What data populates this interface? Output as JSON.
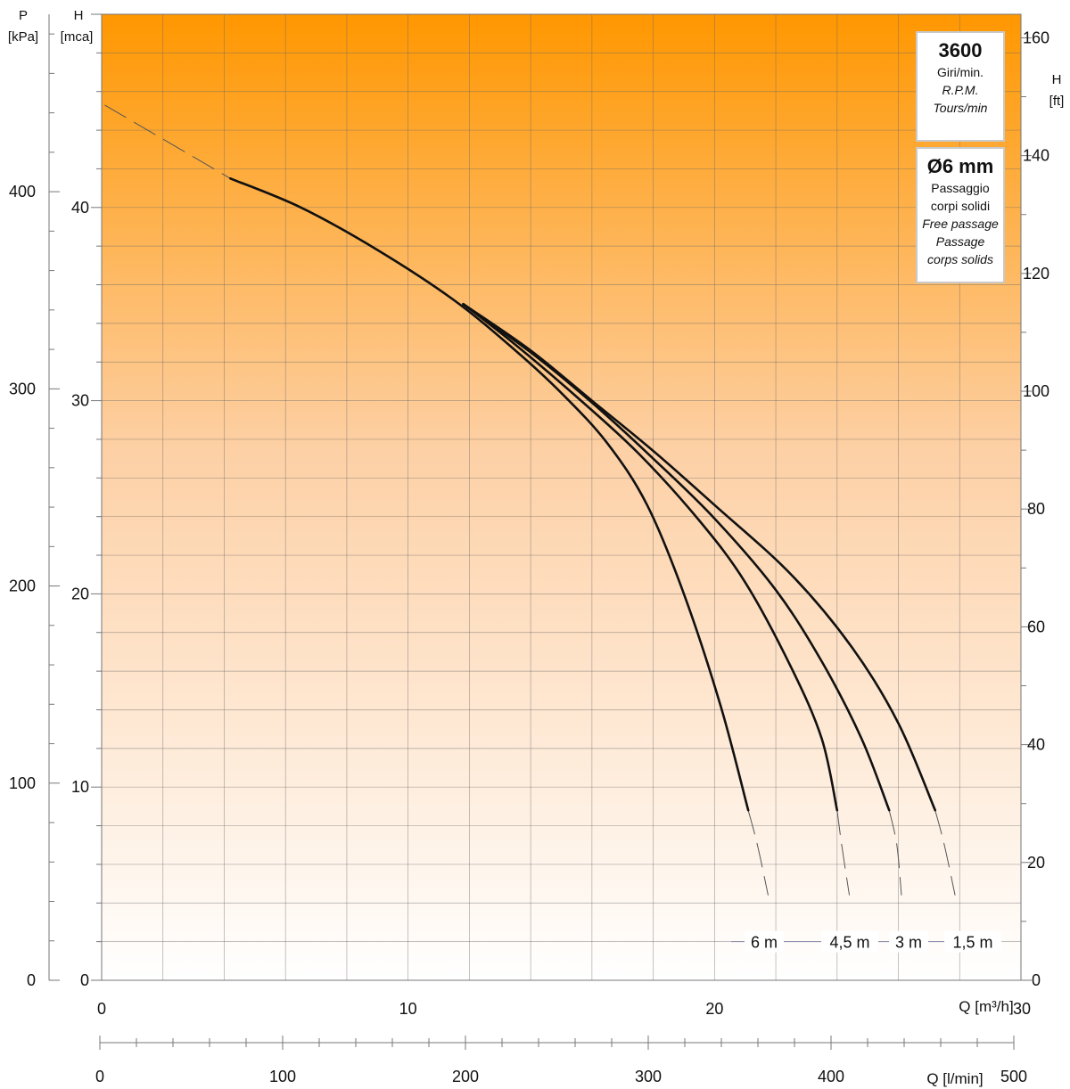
{
  "chart_data": {
    "type": "line",
    "title": "",
    "xlabel": "Q [m³/h]",
    "ylabel": "H [mca]",
    "xlim": [
      0,
      30
    ],
    "ylim": [
      0,
      50
    ],
    "grid": true,
    "x_ticks": [
      "0",
      "10",
      "20",
      "30"
    ],
    "y_ticks": [
      "0",
      "10",
      "20",
      "30",
      "40"
    ],
    "axes": {
      "left_outer": {
        "label_top": "P",
        "label_unit": "[kPa]",
        "range": [
          0,
          490
        ],
        "ticks": [
          "0",
          "100",
          "200",
          "300",
          "400"
        ]
      },
      "left_inner": {
        "label_top": "H",
        "label_unit": "[mca]"
      },
      "right": {
        "label_top": "H",
        "label_unit": "[ft]",
        "range": [
          0,
          164
        ],
        "ticks": [
          "0",
          "20",
          "40",
          "60",
          "80",
          "100",
          "120",
          "140",
          "160"
        ]
      },
      "bottom_lmin": {
        "label": "Q [l/min]",
        "range": [
          0,
          500
        ],
        "ticks": [
          "0",
          "100",
          "200",
          "300",
          "400",
          "500"
        ]
      }
    },
    "series": [
      {
        "name": "6 m",
        "x": [
          4.2,
          6.5,
          9.0,
          11.5,
          13.5,
          15.0,
          16.5,
          17.8,
          19.0,
          20.2,
          21.1
        ],
        "y": [
          41.5,
          40.0,
          37.8,
          35.2,
          32.6,
          30.4,
          27.8,
          24.6,
          20.0,
          14.2,
          8.8
        ]
      },
      {
        "name": "4,5 m",
        "x": [
          11.8,
          13.5,
          15.5,
          17.5,
          19.5,
          21.0,
          22.5,
          23.5,
          24.0
        ],
        "y": [
          35.0,
          32.9,
          30.2,
          27.3,
          23.8,
          20.6,
          16.2,
          12.5,
          8.8
        ]
      },
      {
        "name": "3 m",
        "x": [
          11.8,
          14.0,
          16.0,
          18.0,
          20.0,
          22.0,
          23.5,
          24.8,
          25.7
        ],
        "y": [
          35.0,
          32.5,
          29.9,
          27.0,
          23.9,
          20.2,
          16.5,
          12.5,
          8.8
        ]
      },
      {
        "name": "1,5 m",
        "x": [
          11.8,
          14.0,
          16.0,
          18.0,
          20.0,
          22.5,
          24.5,
          26.0,
          27.2
        ],
        "y": [
          35.0,
          32.6,
          30.0,
          27.4,
          24.6,
          21.0,
          17.2,
          13.3,
          8.8
        ]
      }
    ],
    "dashed_segments": [
      {
        "x": [
          0.1,
          4.2
        ],
        "y": [
          45.3,
          41.5
        ]
      },
      {
        "x": [
          21.1,
          21.4,
          21.75
        ],
        "y": [
          8.8,
          7.0,
          4.4
        ]
      },
      {
        "x": [
          24.0,
          24.15,
          24.4
        ],
        "y": [
          8.8,
          7.0,
          4.4
        ]
      },
      {
        "x": [
          25.7,
          25.95,
          26.1
        ],
        "y": [
          8.8,
          7.0,
          4.4
        ]
      },
      {
        "x": [
          27.2,
          27.5,
          27.85
        ],
        "y": [
          8.8,
          7.0,
          4.4
        ]
      }
    ],
    "annotations": {
      "speed": {
        "value": "3600",
        "lines": [
          "Giri/min.",
          "R.P.M.",
          "Tours/min"
        ]
      },
      "passage": {
        "value": "Ø6 mm",
        "lines": [
          "Passaggio",
          "corpi solidi",
          "Free passage",
          "Passage",
          "corps solids"
        ]
      }
    },
    "colors": {
      "top": "#FF9700",
      "bottom": "#FFFFFF",
      "curve": "#111111",
      "grid": "#666666"
    }
  }
}
